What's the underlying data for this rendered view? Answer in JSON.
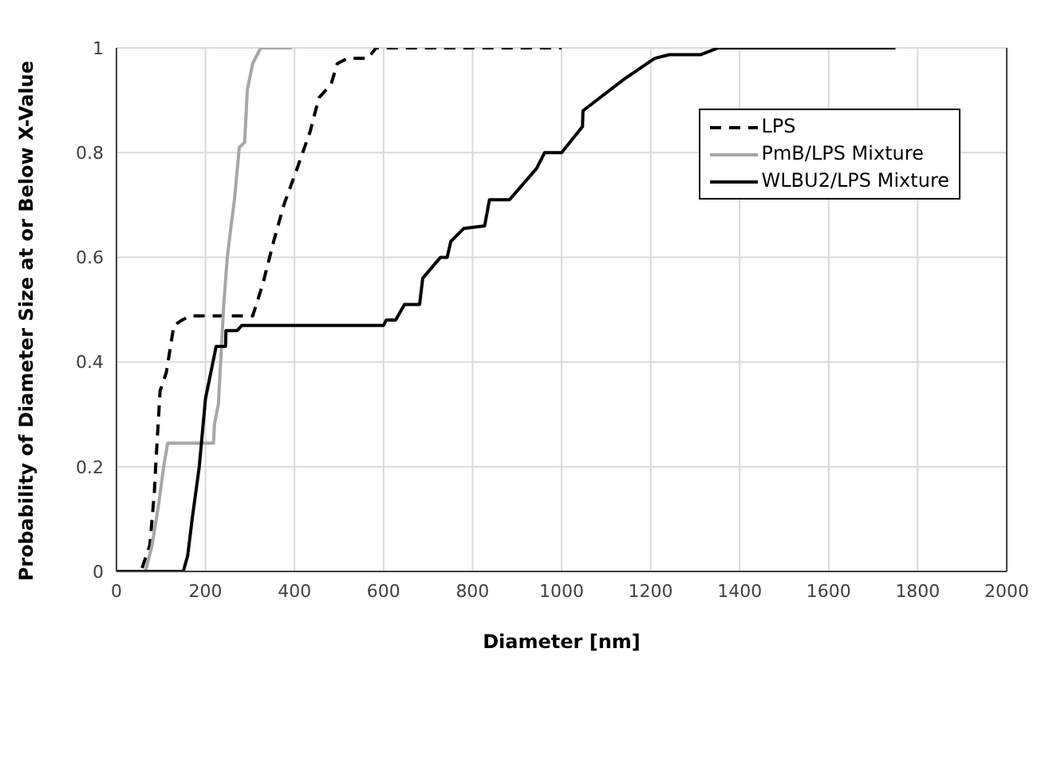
{
  "chart_data": {
    "type": "line",
    "xlabel": "Diameter [nm]",
    "ylabel": "Probability of Diameter Size at or Below  X-Value",
    "xlim": [
      0,
      2000
    ],
    "xticks": [
      0,
      200,
      400,
      600,
      800,
      1000,
      1200,
      1400,
      1600,
      1800,
      2000
    ],
    "ylim": [
      0,
      1
    ],
    "yticks": [
      0,
      0.2,
      0.4,
      0.6,
      0.8,
      1
    ],
    "grid": true,
    "legend": "top right",
    "marker": "none",
    "series": [
      {
        "name": "LPS",
        "color": "#000000",
        "line_style": "dashed",
        "x": [
          20,
          55,
          75,
          85,
          88,
          98,
          112,
          129,
          147,
          165,
          306,
          318,
          329,
          353,
          376,
          406,
          435,
          455,
          482,
          496,
          519,
          565,
          583,
          1000
        ],
        "values": [
          0,
          0,
          0.05,
          0.15,
          0.2,
          0.345,
          0.38,
          0.47,
          0.48,
          0.488,
          0.488,
          0.52,
          0.55,
          0.63,
          0.7,
          0.77,
          0.84,
          0.905,
          0.93,
          0.97,
          0.98,
          0.98,
          1,
          1
        ]
      },
      {
        "name": "PmB/LPS Mixture",
        "color": "#a6a6a6",
        "line_style": "solid",
        "x": [
          50,
          65,
          80,
          95,
          106,
          115,
          218,
          220,
          229,
          241,
          249,
          256,
          265,
          276,
          288,
          294,
          306,
          324,
          394
        ],
        "values": [
          0,
          0,
          0.05,
          0.13,
          0.2,
          0.245,
          0.245,
          0.28,
          0.32,
          0.51,
          0.6,
          0.65,
          0.71,
          0.81,
          0.82,
          0.92,
          0.97,
          1,
          1
        ]
      },
      {
        "name": "WLBU2/LPS Mixture",
        "color": "#000000",
        "line_style": "solid",
        "x": [
          0,
          150,
          160,
          170,
          186,
          200,
          212,
          224,
          245,
          246,
          271,
          282,
          600,
          606,
          627,
          647,
          681,
          688,
          728,
          743,
          751,
          780,
          827,
          838,
          883,
          944,
          962,
          1000,
          1047,
          1048,
          1140,
          1209,
          1242,
          1312,
          1352,
          1750
        ],
        "values": [
          0,
          0,
          0.03,
          0.1,
          0.2,
          0.33,
          0.38,
          0.43,
          0.43,
          0.46,
          0.46,
          0.47,
          0.47,
          0.48,
          0.48,
          0.51,
          0.51,
          0.56,
          0.6,
          0.6,
          0.63,
          0.655,
          0.66,
          0.71,
          0.71,
          0.77,
          0.8,
          0.8,
          0.85,
          0.88,
          0.94,
          0.98,
          0.987,
          0.987,
          1,
          1
        ]
      }
    ]
  }
}
